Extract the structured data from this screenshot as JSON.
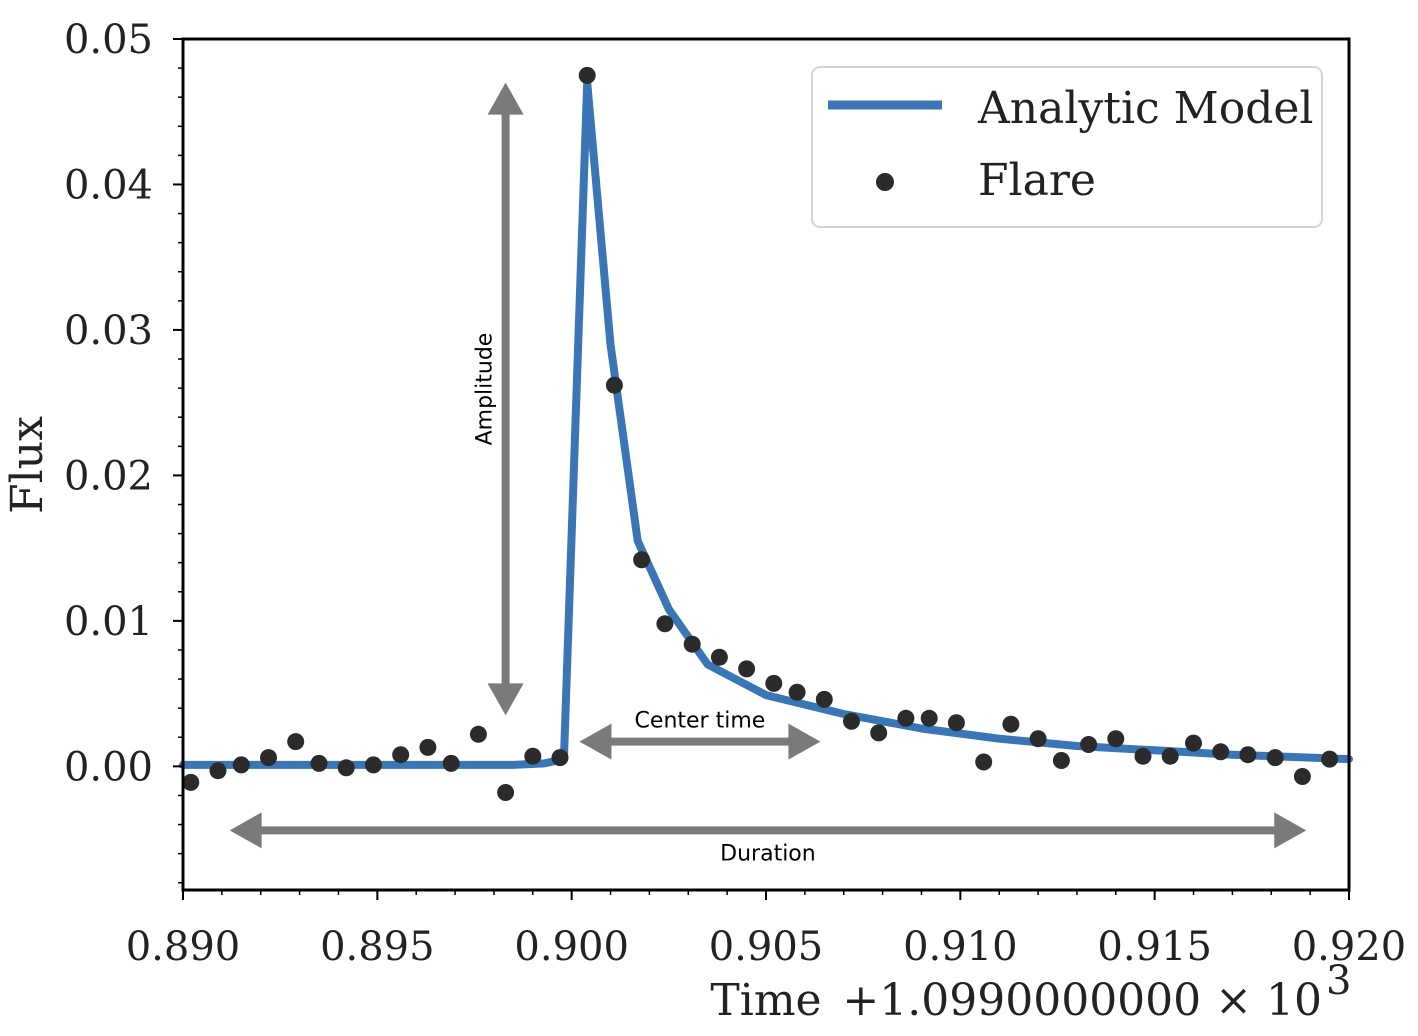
{
  "chart_data": {
    "type": "line",
    "title": "",
    "xlabel": "Time",
    "ylabel": "Flux",
    "x_offset_label": "+1.0990000000 × 10",
    "x_offset_exponent": "3",
    "xlim": [
      0.89,
      0.92
    ],
    "ylim": [
      -0.0085,
      0.05
    ],
    "x_ticks": [
      0.89,
      0.895,
      0.9,
      0.905,
      0.91,
      0.915,
      0.92
    ],
    "x_tick_labels": [
      "0.890",
      "0.895",
      "0.900",
      "0.905",
      "0.910",
      "0.915",
      "0.920"
    ],
    "y_ticks": [
      0.0,
      0.01,
      0.02,
      0.03,
      0.04,
      0.05
    ],
    "y_tick_labels": [
      "0.00",
      "0.01",
      "0.02",
      "0.03",
      "0.04",
      "0.05"
    ],
    "grid": false,
    "legend_position": "top-right",
    "series": [
      {
        "name": "Analytic Model",
        "kind": "line",
        "color": "#3a76b6",
        "x": [
          0.89,
          0.8985,
          0.8993,
          0.8998,
          0.9004,
          0.901,
          0.9017,
          0.9025,
          0.9035,
          0.905,
          0.907,
          0.909,
          0.911,
          0.913,
          0.915,
          0.917,
          0.919,
          0.92
        ],
        "y": [
          0.0001,
          0.0001,
          0.0002,
          0.0005,
          0.047,
          0.029,
          0.0155,
          0.0108,
          0.007,
          0.0049,
          0.0036,
          0.0026,
          0.0019,
          0.0014,
          0.0011,
          0.0008,
          0.0006,
          0.0005
        ]
      },
      {
        "name": "Flare",
        "kind": "scatter",
        "color": "#2b2b2b",
        "x": [
          0.8902,
          0.8909,
          0.8915,
          0.8922,
          0.8929,
          0.8935,
          0.8942,
          0.8949,
          0.8956,
          0.8963,
          0.8969,
          0.8976,
          0.8983,
          0.899,
          0.8997,
          0.9004,
          0.9011,
          0.9018,
          0.9024,
          0.9031,
          0.9038,
          0.9045,
          0.9052,
          0.9058,
          0.9065,
          0.9072,
          0.9079,
          0.9086,
          0.9092,
          0.9099,
          0.9106,
          0.9113,
          0.912,
          0.9126,
          0.9133,
          0.914,
          0.9147,
          0.9154,
          0.916,
          0.9167,
          0.9174,
          0.9181,
          0.9188,
          0.9195
        ],
        "y": [
          -0.0011,
          -0.0003,
          0.0001,
          0.0006,
          0.0017,
          0.0002,
          -0.0001,
          0.0001,
          0.0008,
          0.0013,
          0.0002,
          0.0022,
          -0.0018,
          0.0007,
          0.0006,
          0.0475,
          0.0262,
          0.0142,
          0.0098,
          0.0084,
          0.0075,
          0.0067,
          0.0057,
          0.0051,
          0.0046,
          0.0031,
          0.0023,
          0.0033,
          0.0033,
          0.003,
          0.0003,
          0.0029,
          0.0019,
          0.0004,
          0.0015,
          0.0019,
          0.0007,
          0.0007,
          0.0016,
          0.001,
          0.0008,
          0.0006,
          -0.0007,
          0.0005
        ]
      }
    ],
    "annotations": [
      {
        "text": "Amplitude",
        "kind": "vertical-arrow",
        "x": 0.8983,
        "y_from": 0.047,
        "y_to": 0.0035
      },
      {
        "text": "Center time",
        "kind": "horizontal-arrow",
        "y": 0.0017,
        "x_from": 0.9002,
        "x_to": 0.9064
      },
      {
        "text": "Duration",
        "kind": "horizontal-arrow",
        "y": -0.0044,
        "x_from": 0.8912,
        "x_to": 0.9189
      }
    ],
    "arrow_color": "#7a7a7a"
  }
}
